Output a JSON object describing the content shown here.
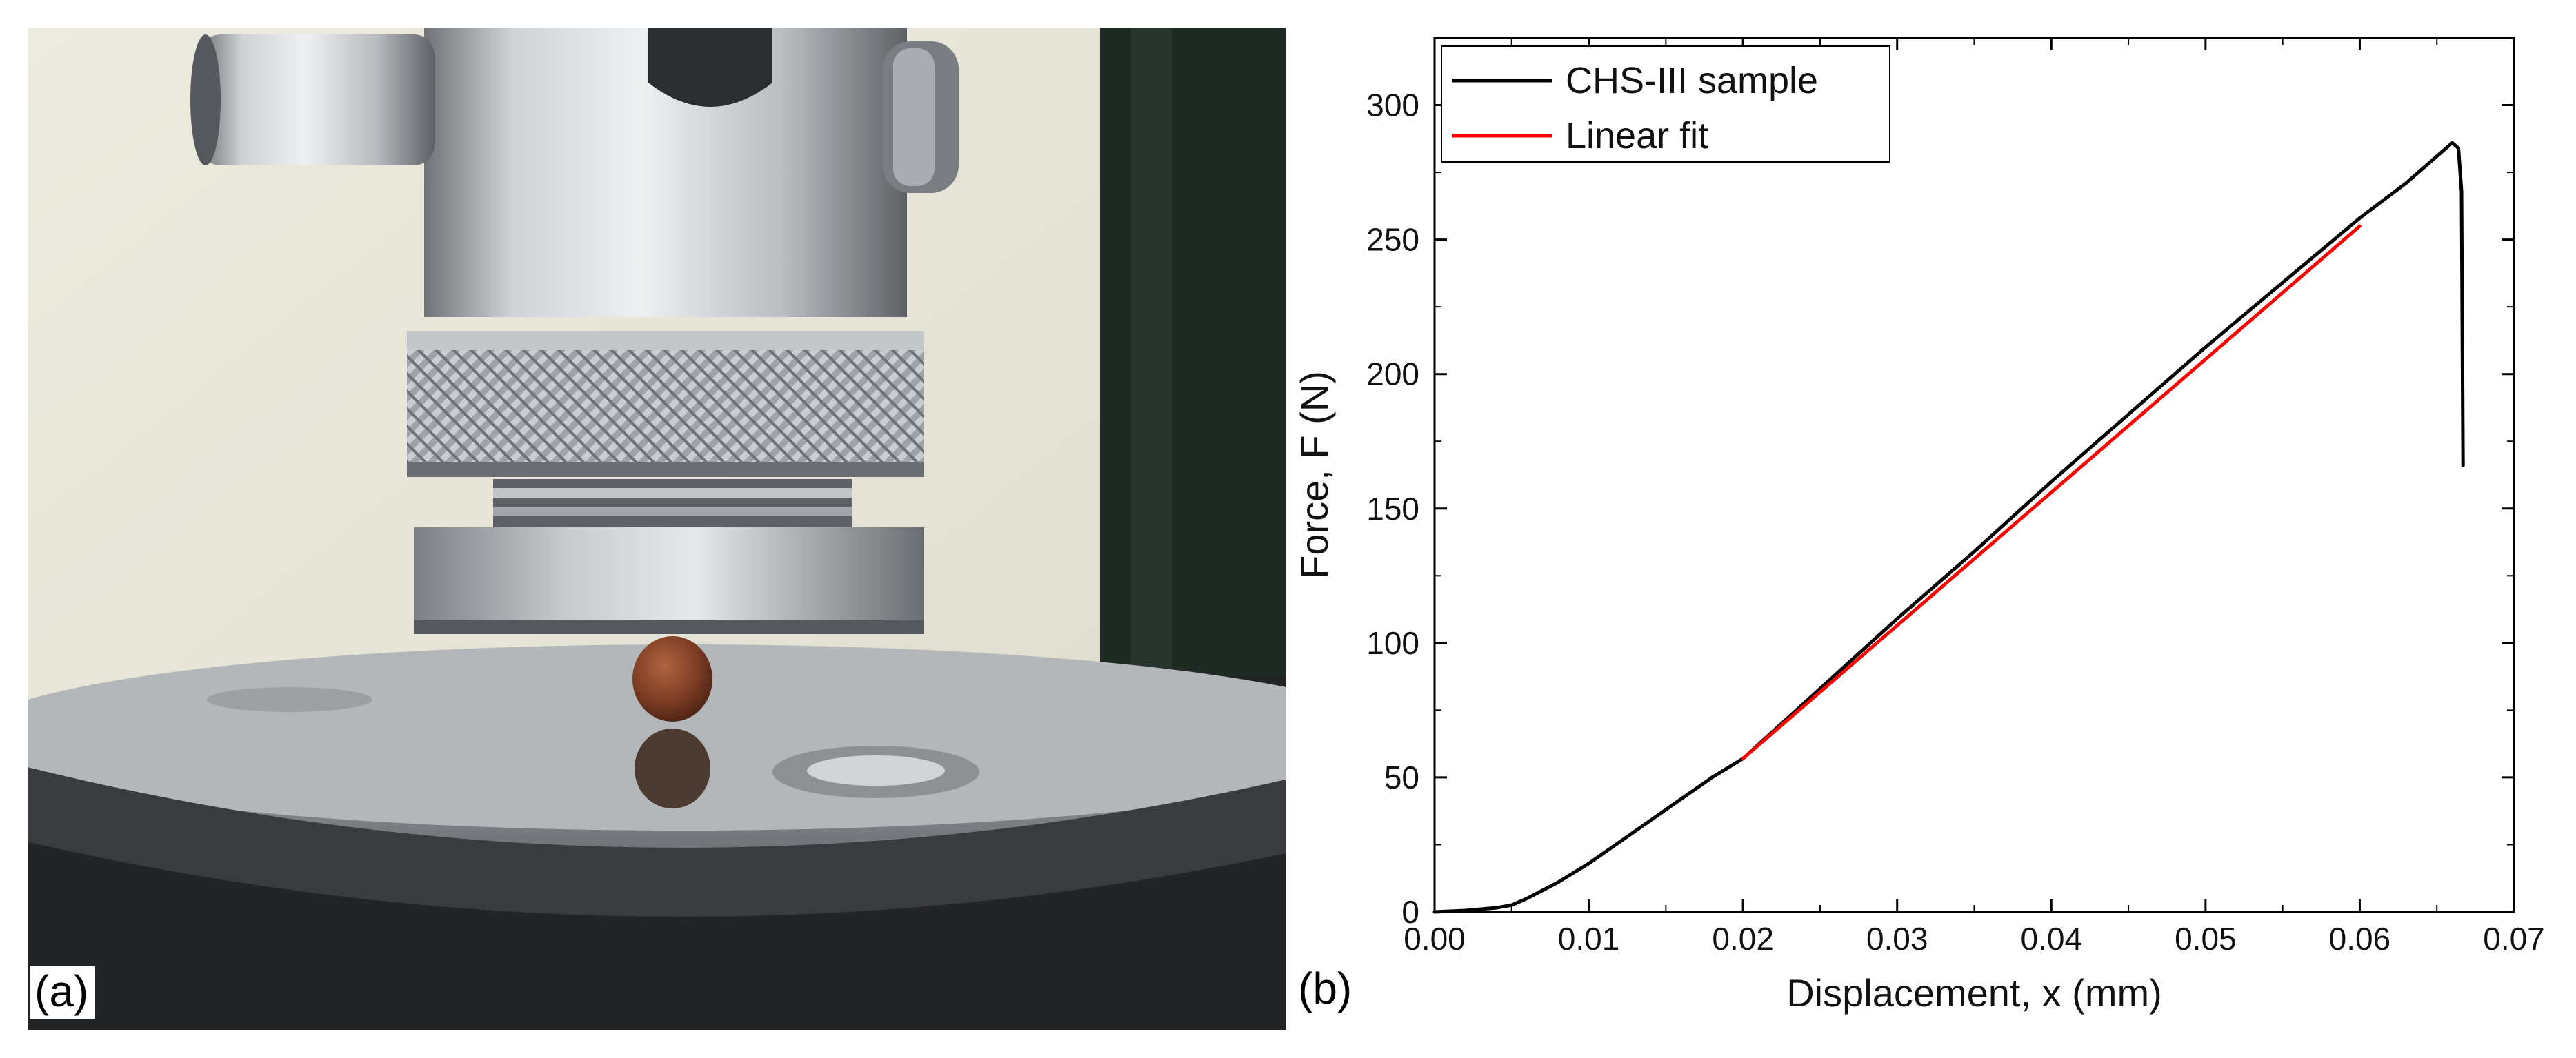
{
  "panels": {
    "a_label": "(a)",
    "b_label": "(b)"
  },
  "colors": {
    "curve": "#000000",
    "fit": "#ff0000",
    "axis": "#000000"
  },
  "chart_data": {
    "type": "line",
    "title": "",
    "xlabel": "Displacement, x (mm)",
    "ylabel": "Force, F (N)",
    "xlim": [
      0,
      0.07
    ],
    "ylim": [
      0,
      325
    ],
    "x_ticks": [
      0.0,
      0.01,
      0.02,
      0.03,
      0.04,
      0.05,
      0.06,
      0.07
    ],
    "x_tick_labels": [
      "0.00",
      "0.01",
      "0.02",
      "0.03",
      "0.04",
      "0.05",
      "0.06",
      "0.07"
    ],
    "y_ticks": [
      0,
      50,
      100,
      150,
      200,
      250,
      300
    ],
    "y_tick_labels": [
      "0",
      "50",
      "100",
      "150",
      "200",
      "250",
      "300"
    ],
    "grid": false,
    "legend_position": "top-left",
    "series": [
      {
        "name": "CHS-III sample",
        "color": "#000000",
        "x": [
          0.0,
          0.002,
          0.004,
          0.005,
          0.006,
          0.008,
          0.01,
          0.012,
          0.014,
          0.016,
          0.018,
          0.02,
          0.025,
          0.03,
          0.035,
          0.04,
          0.045,
          0.05,
          0.055,
          0.06,
          0.063,
          0.066,
          0.0664,
          0.0666,
          0.0667
        ],
        "y": [
          0,
          0.5,
          1.5,
          2.5,
          5,
          11,
          18,
          26,
          34,
          42,
          50,
          57,
          83,
          109,
          134,
          160,
          185,
          210,
          234,
          258,
          271,
          286,
          284,
          268,
          166
        ]
      },
      {
        "name": "Linear fit",
        "color": "#ff0000",
        "x": [
          0.02,
          0.06
        ],
        "y": [
          57,
          255
        ]
      }
    ]
  }
}
